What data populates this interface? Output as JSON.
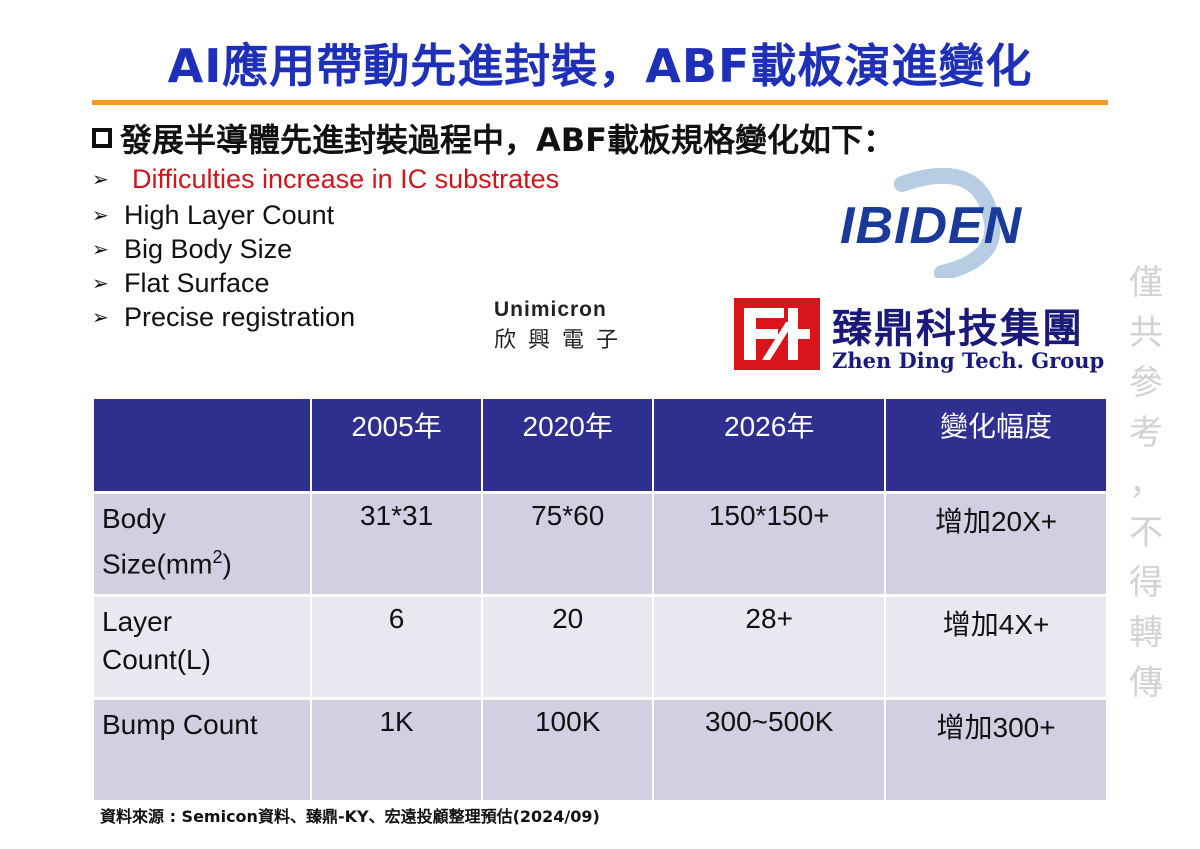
{
  "title": "AI應用帶動先進封裝，ABF載板演進變化",
  "subtitle": "發展半導體先進封裝過程中，ABF載板規格變化如下：",
  "bullets": [
    "Difficulties increase in IC substrates",
    "High Layer Count",
    "Big Body Size",
    "Flat Surface",
    "Precise registration"
  ],
  "logos": {
    "ibiden": "IBIDEN",
    "unimicron_en": "Unimicron",
    "unimicron_zh": "欣興電子",
    "zhending_zh": "臻鼎科技集團",
    "zhending_en": "Zhen Ding Tech. Group"
  },
  "watermark": [
    "僅",
    "共",
    "參",
    "考",
    "，",
    "不",
    "得",
    "轉",
    "傳"
  ],
  "table": {
    "headers": [
      "",
      "2005年",
      "2020年",
      "2026年",
      "變化幅度"
    ],
    "rows": [
      {
        "label_line1": "Body",
        "label_line2": "Size(mm",
        "label_sup": "2",
        "label_close": ")",
        "values": [
          "31*31",
          "75*60",
          "150*150+",
          "增加20X+"
        ]
      },
      {
        "label_line1": "Layer",
        "label_line2": "Count(L)",
        "values": [
          "6",
          "20",
          "28+",
          "增加4X+"
        ]
      },
      {
        "label_line1": "Bump Count",
        "label_line2": "",
        "values": [
          "1K",
          "100K",
          "300~500K",
          "增加300+"
        ]
      }
    ]
  },
  "source": "資料來源 : Semicon資料、臻鼎-KY、宏遠投顧整理預估(2024/09)",
  "colors": {
    "title": "#1e2fb8",
    "rule": "#f39a1b",
    "highlight_bullet": "#d3141c",
    "table_header": "#2e2f8f",
    "table_row_dark": "#d0d0e2",
    "table_row_light": "#e8e8f1"
  }
}
